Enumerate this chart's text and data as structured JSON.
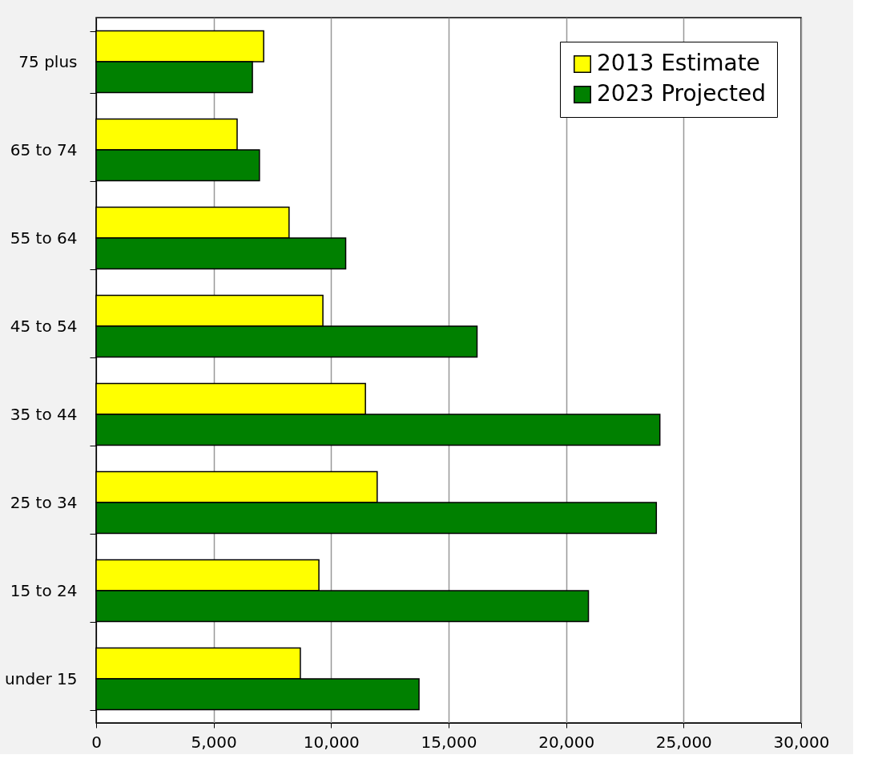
{
  "chart_data": {
    "type": "bar",
    "orientation": "horizontal",
    "categories": [
      "75 plus",
      "65 to 74",
      "55 to 64",
      "45 to 54",
      "35 to 44",
      "25 to 34",
      "15 to 24",
      "under 15"
    ],
    "series": [
      {
        "name": "2013 Estimate",
        "color": "#ffff00",
        "values": [
          7130,
          6000,
          8210,
          9650,
          11460,
          11960,
          9480,
          8690
        ]
      },
      {
        "name": "2023 Projected",
        "color": "#008000",
        "values": [
          6650,
          6950,
          10620,
          16210,
          23990,
          23840,
          20950,
          13740
        ]
      }
    ],
    "xlim": [
      0,
      30000
    ],
    "xticks": [
      0,
      {
        "value": 5000,
        "label": "5,000"
      },
      {
        "value": 10000,
        "label": "10,000"
      },
      {
        "value": 15000,
        "label": "15,000"
      },
      {
        "value": 20000,
        "label": "20,000"
      },
      {
        "value": 25000,
        "label": "25,000"
      },
      {
        "value": 30000,
        "label": "30,000"
      }
    ],
    "grid": "x",
    "legend": "top right"
  }
}
